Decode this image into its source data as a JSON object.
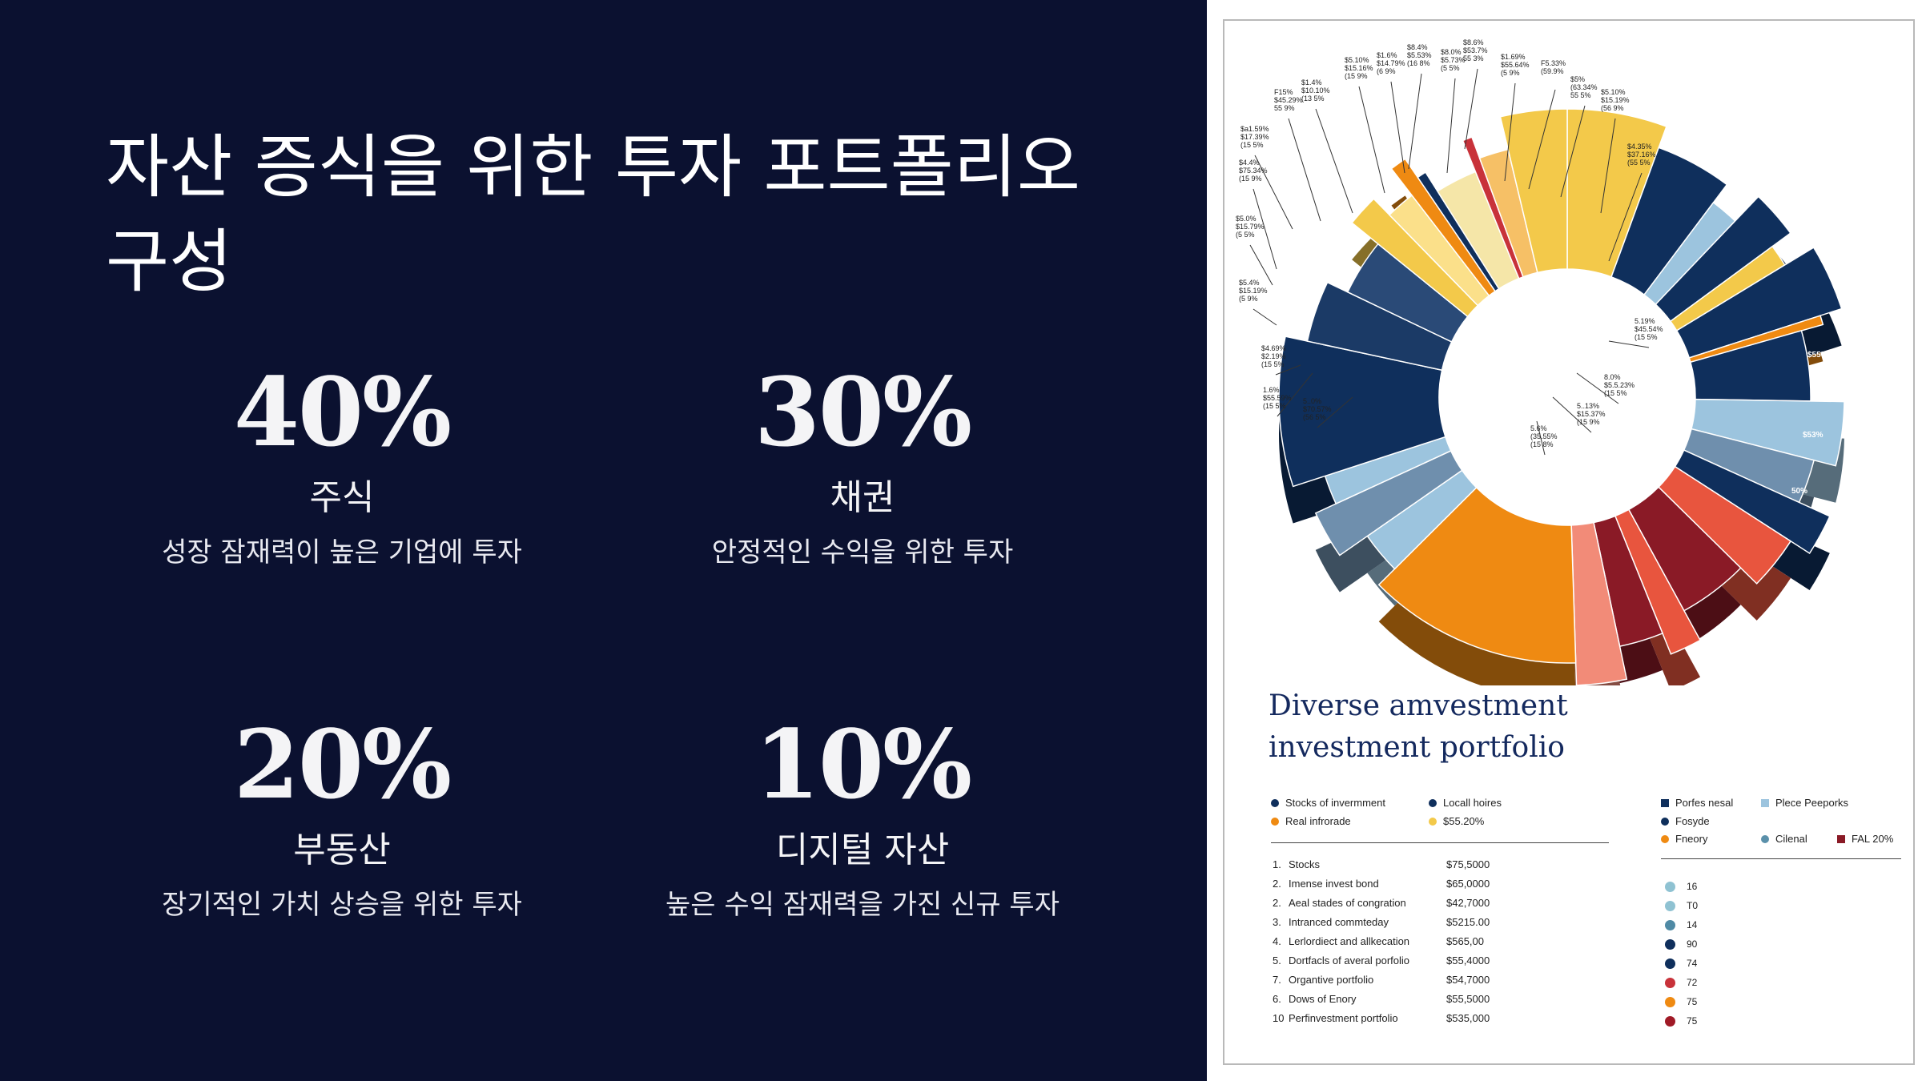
{
  "slide": {
    "title": "자산 증식을 위한 투자 포트폴리오 구성",
    "stats": [
      {
        "value": "40%",
        "label": "주식",
        "desc": "성장 잠재력이 높은 기업에 투자"
      },
      {
        "value": "30%",
        "label": "채권",
        "desc": "안정적인 수익을 위한 투자"
      },
      {
        "value": "20%",
        "label": "부동산",
        "desc": "장기적인 가치 상승을 위한 투자"
      },
      {
        "value": "10%",
        "label": "디지털 자산",
        "desc": "높은 수익 잠재력을 가진 신규 투자"
      }
    ]
  },
  "poster": {
    "title_line1": "Diverse amvestment",
    "title_line2": "investment portfolio",
    "colors": {
      "navy": "#0f2f5c",
      "light_blue": "#9cc4de",
      "yellow": "#f3c94a",
      "orange": "#ef8a12",
      "red": "#e8553e",
      "maroon": "#8a1a26",
      "brown": "#6b3a12",
      "steel": "#6f8fad"
    },
    "callouts": [
      {
        "text": "$8.4%|$5.53%|(16 8%"
      },
      {
        "text": "$8.6%|$53.7%|55 3%"
      },
      {
        "text": "$8.0%|$5.73%|(5 5%"
      },
      {
        "text": "$1.6%|$14.79%|(6 9%"
      },
      {
        "text": "$5.10%|$15.16%|(15 9%"
      },
      {
        "text": "$1.69%|$55.64%|(5 9%"
      },
      {
        "text": "F5.33%|(59.9%"
      },
      {
        "text": "$5%|(63.34%|55 5%"
      },
      {
        "text": "$1.4%|$10.10%|(13 5%"
      },
      {
        "text": "F15%|$45.29%|55 9%"
      },
      {
        "text": "$5.10%|$15.19%|(56 9%"
      },
      {
        "text": "$a1.59%|$17.39%|(15 5%"
      },
      {
        "text": "$4.35%|$37.16%|(55 5%"
      },
      {
        "text": "$4.4%|$75.34%|(15 9%"
      },
      {
        "text": "$5.0%|$15.79%|(5 5%"
      },
      {
        "text": "$5.4%|$15.19%|(5 9%"
      },
      {
        "text": "5.19%|$45.54%|(15 5%"
      },
      {
        "text": "$4.69%|$2.19%|(15 5%"
      },
      {
        "text": "8.0%|$5.5.23%|(15 5%"
      },
      {
        "text": "1.6%|$55.59%|(15 5%"
      },
      {
        "text": "5..0%|$70.57%|(56 5%"
      },
      {
        "text": "5..13%|$15.37%|(15 9%"
      },
      {
        "text": "5.6%|(35.55%|(15 8%"
      }
    ],
    "inner_labels": [
      "$55%",
      "$53%",
      "50%"
    ],
    "legend_top": [
      {
        "label": "Stocks of invermment",
        "color": "#0f2f5c"
      },
      {
        "label": "Locall hoires",
        "color": "#0f2f5c"
      },
      {
        "label": "Real infrorade",
        "color": "#ef8a12"
      },
      {
        "label": "$55.20%",
        "color": "#f3c94a"
      }
    ],
    "legend_right": [
      {
        "label": "Porfes nesal",
        "color": "#0f2f5c",
        "shape": "square"
      },
      {
        "label": "Plece Peeporks",
        "color": "#9cc4de",
        "shape": "square"
      },
      {
        "label": "Fosyde",
        "color": "#0f2f5c",
        "shape": "dot"
      },
      {
        "label": "Fneory",
        "color": "#ef8a12",
        "shape": "dot"
      },
      {
        "label": "Cilenal",
        "color": "#5a90aa",
        "shape": "dot"
      },
      {
        "label": "FAL 20%",
        "color": "#8a1a26",
        "shape": "square"
      }
    ],
    "table": [
      {
        "num": "1.",
        "name": "Stocks",
        "amount": "$75,5000"
      },
      {
        "num": "2.",
        "name": "Imense invest bond",
        "amount": "$65,0000"
      },
      {
        "num": "2.",
        "name": "Aeal stades of congration",
        "amount": "$42,7000"
      },
      {
        "num": "3.",
        "name": "Intranced commteday",
        "amount": "$5215.00"
      },
      {
        "num": "4.",
        "name": "Lerlordiect and allkecation",
        "amount": "$565,00"
      },
      {
        "num": "5.",
        "name": "Dortfacls of averal porfolio",
        "amount": "$55,4000"
      },
      {
        "num": "7.",
        "name": "Organtive portfolio",
        "amount": "$54,7000"
      },
      {
        "num": "6.",
        "name": "Dows of Enory",
        "amount": "$55,5000"
      },
      {
        "num": "10",
        "name": "Perfinvestment portfolio",
        "amount": "$535,000"
      }
    ],
    "side_codes": [
      {
        "code": "16",
        "color": "#8fc2d2"
      },
      {
        "code": "T0",
        "color": "#8fc2d2"
      },
      {
        "code": "14",
        "color": "#4f8aa5"
      },
      {
        "code": "90",
        "color": "#0f2f5c"
      },
      {
        "code": "74",
        "color": "#0f2f5c"
      },
      {
        "code": "72",
        "color": "#c8323a"
      },
      {
        "code": "75",
        "color": "#ef8a12"
      },
      {
        "code": "75",
        "color": "#a01a26"
      }
    ],
    "ring": [
      {
        "color": "#f3c94a",
        "value": 6
      },
      {
        "color": "#0f2f5c",
        "value": 5
      },
      {
        "color": "#9cc4de",
        "value": 2
      },
      {
        "color": "#0f2f5c",
        "value": 3
      },
      {
        "color": "#f3c94a",
        "value": 1.5
      },
      {
        "color": "#0f2f5c",
        "value": 4
      },
      {
        "color": "#ef8a12",
        "value": 0.6
      },
      {
        "color": "#0f2f5c",
        "value": 5
      },
      {
        "color": "#9cc4de",
        "value": 4
      },
      {
        "color": "#6f8fad",
        "value": 3
      },
      {
        "color": "#0f2f5c",
        "value": 2.5
      },
      {
        "color": "#e8553e",
        "value": 3.5
      },
      {
        "color": "#8a1a26",
        "value": 5
      },
      {
        "color": "#e8553e",
        "value": 2
      },
      {
        "color": "#8a1a26",
        "value": 3
      },
      {
        "color": "#f28b78",
        "value": 3
      },
      {
        "color": "#ef8a12",
        "value": 14
      },
      {
        "color": "#9cc4de",
        "value": 3
      },
      {
        "color": "#6f8fad",
        "value": 3
      },
      {
        "color": "#9cc4de",
        "value": 2
      },
      {
        "color": "#0f2f5c",
        "value": 9
      },
      {
        "color": "#1b3a66",
        "value": 4
      },
      {
        "color": "#2a4a77",
        "value": 4
      },
      {
        "color": "#f3c94a",
        "value": 2
      },
      {
        "color": "#fbe08a",
        "value": 2
      },
      {
        "color": "#ef8a12",
        "value": 1
      },
      {
        "color": "#0f2f5c",
        "value": 0.6
      },
      {
        "color": "#f5e6a8",
        "value": 3
      },
      {
        "color": "#c8323a",
        "value": 0.6
      },
      {
        "color": "#f6c066",
        "value": 2
      },
      {
        "color": "#f3c94a",
        "value": 4
      }
    ]
  }
}
